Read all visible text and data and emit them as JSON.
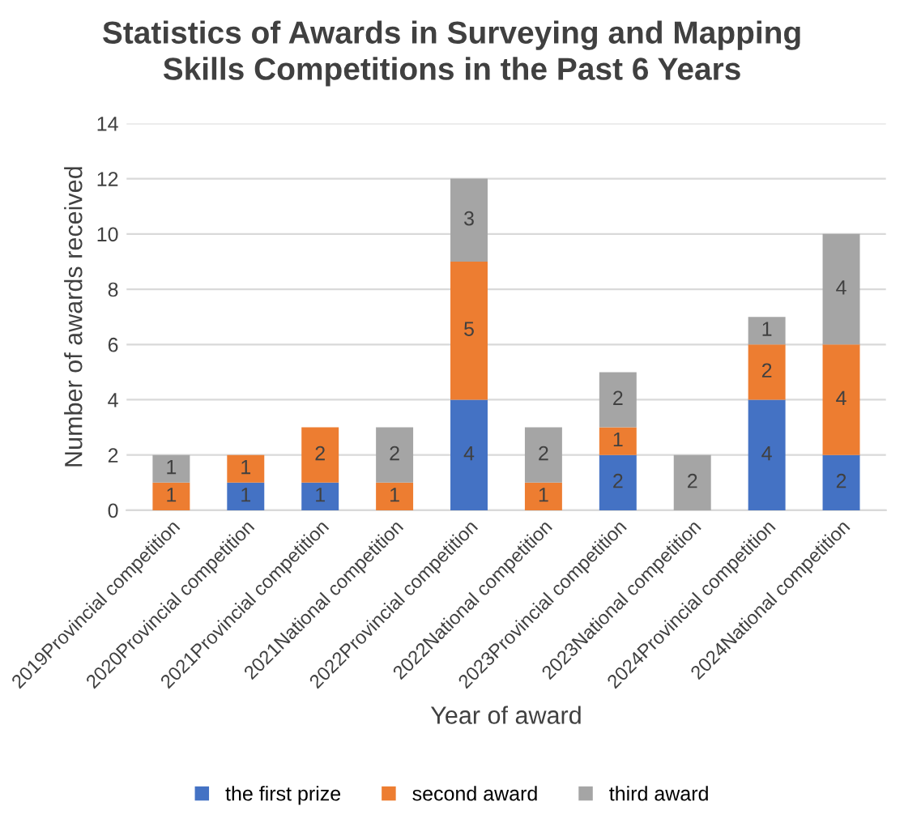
{
  "chart_data": {
    "type": "bar",
    "stacked": true,
    "title": "Statistics of Awards in Surveying and Mapping\nSkills Competitions in the Past 6 Years",
    "xlabel": "Year of award",
    "ylabel": "Number of awards received",
    "categories": [
      "2019Provincial competition",
      "2020Provincial competition",
      "2021Provincial competition",
      "2021National competition",
      "2022Provincial competition",
      "2022National competition",
      "2023Provincial competition",
      "2023National competition",
      "2024Provincial competition",
      "2024National competition"
    ],
    "series": [
      {
        "name": "the first prize",
        "color": "#4472c4",
        "values": [
          0,
          1,
          1,
          0,
          4,
          0,
          2,
          0,
          4,
          2
        ],
        "value_labels": [
          null,
          "1",
          "1",
          null,
          "4",
          null,
          "2",
          null,
          "4",
          "2"
        ]
      },
      {
        "name": "second award",
        "color": "#ed7d31",
        "values": [
          1,
          1,
          2,
          1,
          5,
          1,
          1,
          0,
          2,
          4
        ],
        "value_labels": [
          "1",
          "1",
          "2",
          "1",
          "5",
          "1",
          "1",
          null,
          "2",
          "4"
        ]
      },
      {
        "name": "third award",
        "color": "#a5a5a5",
        "values": [
          1,
          0,
          0,
          2,
          3,
          2,
          2,
          2,
          1,
          4
        ],
        "value_labels": [
          "1",
          null,
          null,
          "2",
          "3",
          "2",
          "2",
          "2",
          "1",
          "4"
        ]
      }
    ],
    "ylim": [
      0,
      14
    ],
    "yticks": [
      0,
      2,
      4,
      6,
      8,
      10,
      12,
      14
    ],
    "grid": "y",
    "legend": "bottom"
  }
}
